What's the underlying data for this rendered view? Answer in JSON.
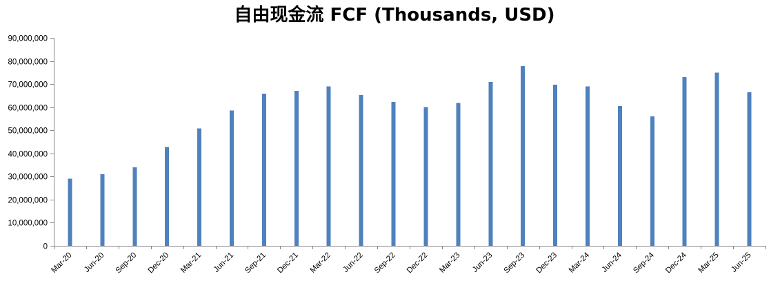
{
  "chart_data": {
    "type": "bar",
    "title": "自由现金流 FCF (Thousands, USD)",
    "xlabel": "",
    "ylabel": "",
    "categories": [
      "Mar-20",
      "Jun-20",
      "Sep-20",
      "Dec-20",
      "Mar-21",
      "Jun-21",
      "Sep-21",
      "Dec-21",
      "Mar-22",
      "Jun-22",
      "Sep-22",
      "Dec-22",
      "Mar-23",
      "Jun-23",
      "Sep-23",
      "Dec-23",
      "Mar-24",
      "Jun-24",
      "Sep-24",
      "Dec-24",
      "Mar-25",
      "Jun-25"
    ],
    "values": [
      29000000,
      31000000,
      34000000,
      42800000,
      50800000,
      58500000,
      65800000,
      67000000,
      69000000,
      65200000,
      62300000,
      60000000,
      61800000,
      71000000,
      77800000,
      69700000,
      69000000,
      60500000,
      56000000,
      73000000,
      75000000,
      66500000
    ],
    "ylim": [
      0,
      90000000
    ],
    "yticks": [
      0,
      10000000,
      20000000,
      30000000,
      40000000,
      50000000,
      60000000,
      70000000,
      80000000,
      90000000
    ],
    "ytick_labels": [
      "0",
      "10,000,000",
      "20,000,000",
      "30,000,000",
      "40,000,000",
      "50,000,000",
      "60,000,000",
      "70,000,000",
      "80,000,000",
      "90,000,000"
    ],
    "bar_color": "#4F81BD",
    "grid": false,
    "legend": "none"
  }
}
